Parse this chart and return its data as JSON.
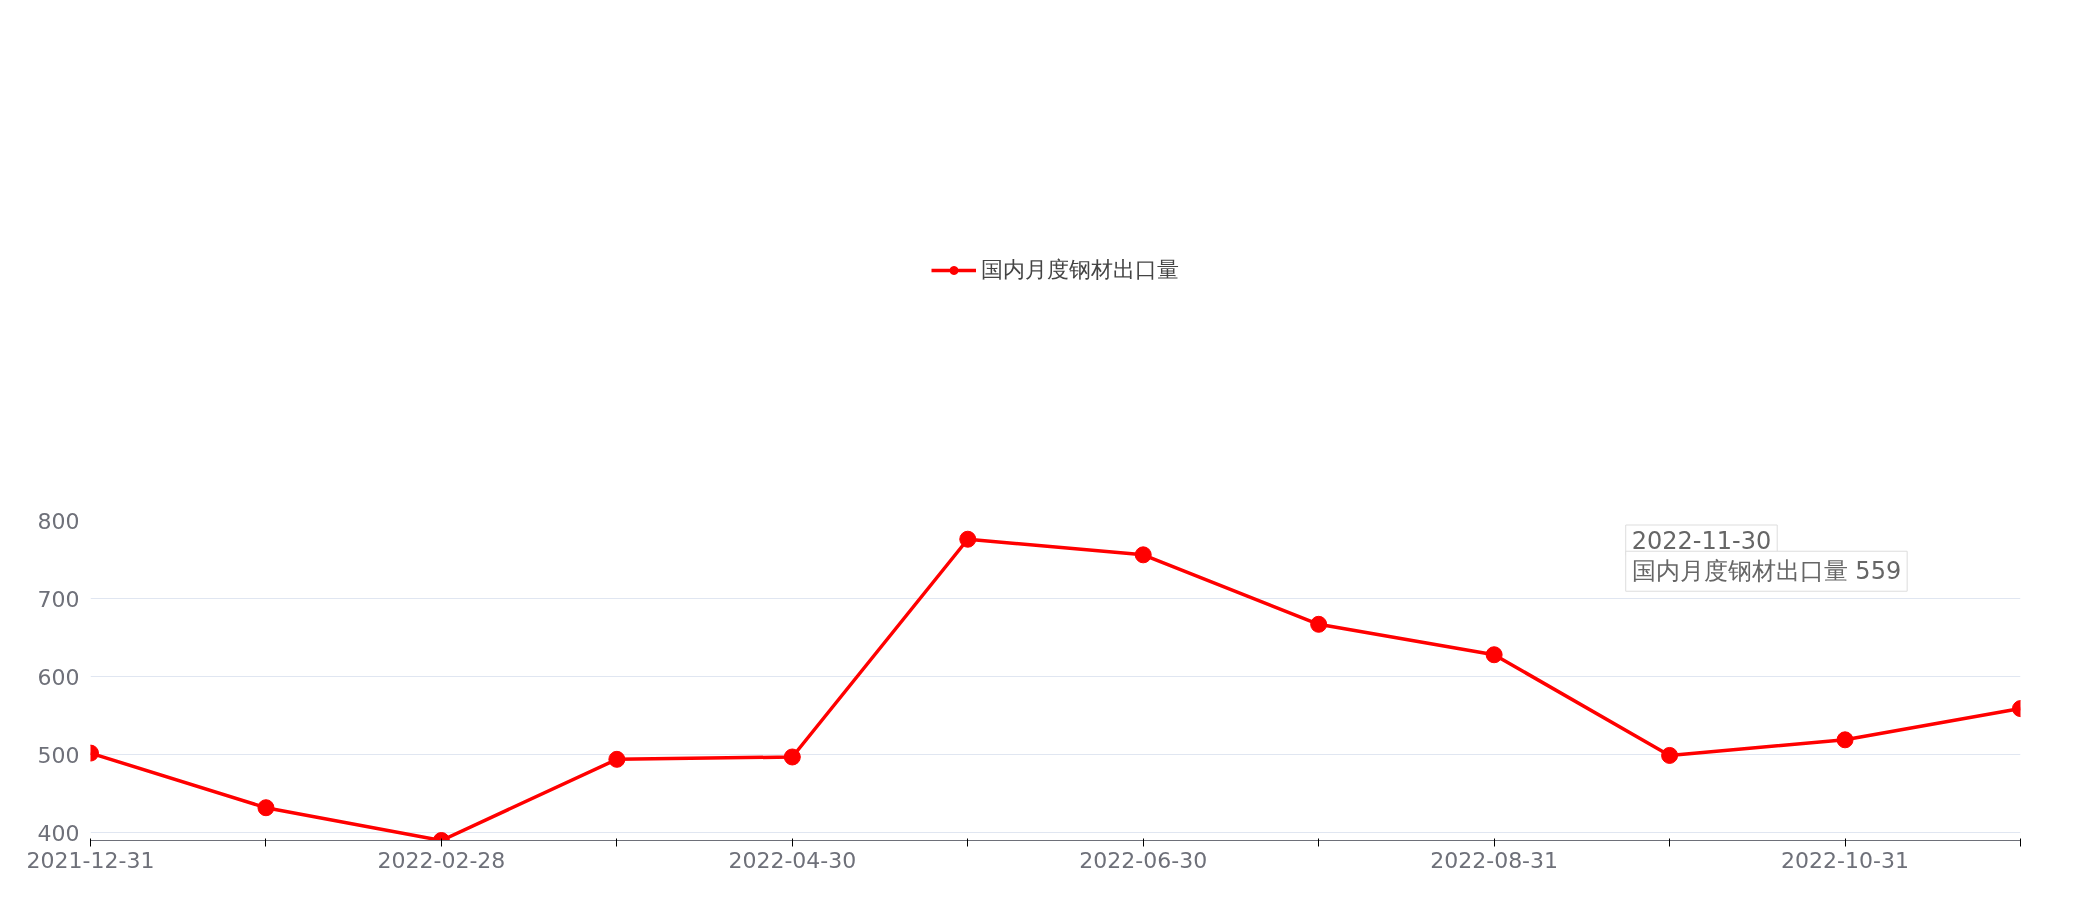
{
  "chart_data": {
    "type": "line",
    "categories": [
      "2021-12-31",
      null,
      "2022-02-28",
      null,
      "2022-04-30",
      null,
      "2022-06-30",
      null,
      "2022-08-31",
      null,
      "2022-10-31",
      null
    ],
    "series": [
      {
        "name": "国内月度钢材出口量",
        "color": "#ff0000",
        "values": [
          502,
          432,
          390,
          494,
          497,
          776,
          756,
          667,
          628,
          499,
          519,
          559
        ]
      }
    ],
    "ylim": [
      390,
      800
    ],
    "yticks": [
      400,
      500,
      600,
      700,
      800
    ],
    "grid": "y",
    "legend": "top",
    "marker": "circle",
    "line_style": "solid",
    "annotations": [
      "2022-11-30",
      "国内月度钢材出口量 559"
    ]
  }
}
